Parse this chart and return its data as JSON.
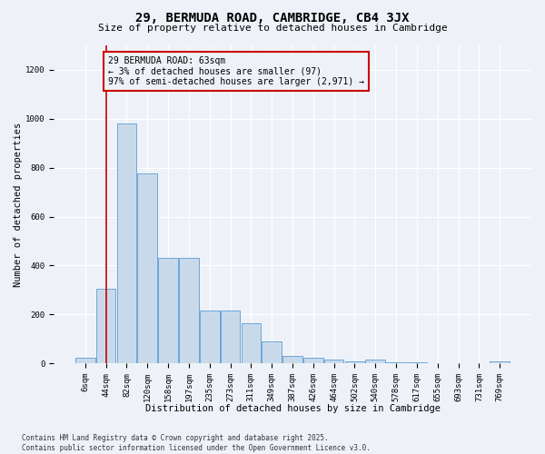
{
  "title_line1": "29, BERMUDA ROAD, CAMBRIDGE, CB4 3JX",
  "title_line2": "Size of property relative to detached houses in Cambridge",
  "xlabel": "Distribution of detached houses by size in Cambridge",
  "ylabel": "Number of detached properties",
  "bar_color": "#c8daea",
  "bar_edge_color": "#5b9bd5",
  "vline_color": "#cc0000",
  "vline_x_idx": 1,
  "annotation_text": "29 BERMUDA ROAD: 63sqm\n← 3% of detached houses are smaller (97)\n97% of semi-detached houses are larger (2,971) →",
  "categories": [
    "6sqm",
    "44sqm",
    "82sqm",
    "120sqm",
    "158sqm",
    "197sqm",
    "235sqm",
    "273sqm",
    "311sqm",
    "349sqm",
    "387sqm",
    "426sqm",
    "464sqm",
    "502sqm",
    "540sqm",
    "578sqm",
    "617sqm",
    "655sqm",
    "693sqm",
    "731sqm",
    "769sqm"
  ],
  "values": [
    25,
    305,
    980,
    775,
    430,
    430,
    215,
    215,
    165,
    90,
    30,
    25,
    15,
    10,
    15,
    5,
    5,
    0,
    0,
    0,
    10
  ],
  "ylim": [
    0,
    1300
  ],
  "yticks": [
    0,
    200,
    400,
    600,
    800,
    1000,
    1200
  ],
  "bg_color": "#eef2f8",
  "footer_text": "Contains HM Land Registry data © Crown copyright and database right 2025.\nContains public sector information licensed under the Open Government Licence v3.0.",
  "fig_width": 6.0,
  "fig_height": 5.0,
  "title_fontsize": 10,
  "subtitle_fontsize": 8,
  "axis_label_fontsize": 7.5,
  "tick_fontsize": 6.5,
  "annotation_fontsize": 7,
  "footer_fontsize": 5.5
}
